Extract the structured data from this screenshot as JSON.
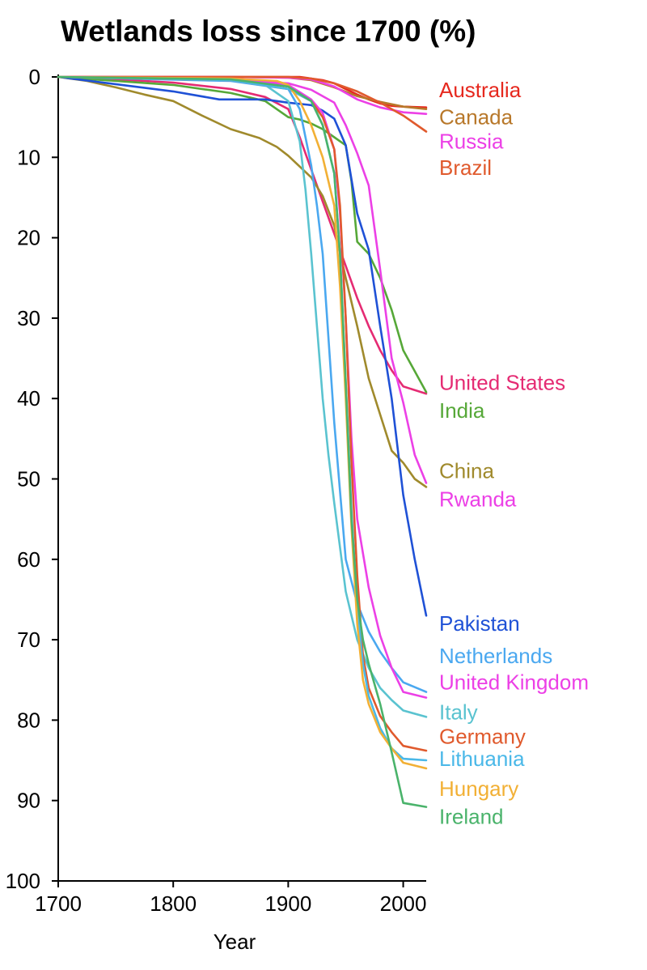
{
  "chart_data": {
    "type": "line",
    "title": "Wetlands loss since 1700 (%)",
    "xlabel": "Year",
    "ylabel": "",
    "xlim": [
      1700,
      2020
    ],
    "ylim": [
      0,
      100
    ],
    "y_inverted": true,
    "xticks": [
      1700,
      1800,
      1900,
      2000
    ],
    "yticks": [
      0,
      10,
      20,
      30,
      40,
      50,
      60,
      70,
      80,
      90,
      100
    ],
    "grid": false,
    "series": [
      {
        "name": "Australia",
        "color": "#e6281e",
        "label_value": 1.6,
        "x": [
          1700,
          1900,
          1910,
          1920,
          1930,
          1940,
          1950,
          1960,
          1970,
          1980,
          1990,
          2000,
          2020
        ],
        "y": [
          0,
          0,
          0,
          0.2,
          0.4,
          0.8,
          1.5,
          2.2,
          2.8,
          3.3,
          3.6,
          3.7,
          3.8
        ]
      },
      {
        "name": "Canada",
        "color": "#b8782a",
        "label_value": 5,
        "x": [
          1700,
          1850,
          1900,
          1920,
          1940,
          1960,
          1980,
          2000,
          2020
        ],
        "y": [
          0,
          0,
          0.1,
          0.4,
          1.3,
          2.4,
          3.1,
          3.7,
          4.0
        ]
      },
      {
        "name": "Russia",
        "color": "#ec40e6",
        "label_value": 8,
        "x": [
          1700,
          1850,
          1900,
          1920,
          1940,
          1960,
          1980,
          2000,
          2020
        ],
        "y": [
          0,
          0,
          0.1,
          0.3,
          1.2,
          2.8,
          3.8,
          4.4,
          4.6
        ]
      },
      {
        "name": "Brazil",
        "color": "#e05a2d",
        "label_value": 11.3,
        "x": [
          1700,
          1900,
          1920,
          1940,
          1960,
          1980,
          2000,
          2020
        ],
        "y": [
          0,
          0,
          0.2,
          0.8,
          1.8,
          3.2,
          4.8,
          6.8
        ]
      },
      {
        "name": "United States",
        "color": "#e52b73",
        "label_value": 38,
        "x": [
          1700,
          1750,
          1800,
          1850,
          1880,
          1900,
          1910,
          1920,
          1930,
          1940,
          1950,
          1960,
          1970,
          1980,
          1990,
          2000,
          2020
        ],
        "y": [
          0,
          0.3,
          0.7,
          1.5,
          2.5,
          4,
          7.5,
          11.5,
          15.5,
          19.5,
          23.5,
          27.5,
          31,
          34,
          36.5,
          38.5,
          39.4
        ]
      },
      {
        "name": "India",
        "color": "#56a838",
        "label_value": 41.5,
        "x": [
          1700,
          1750,
          1800,
          1850,
          1880,
          1900,
          1910,
          1920,
          1930,
          1940,
          1950,
          1955,
          1960,
          1970,
          1980,
          1990,
          2000,
          2020
        ],
        "y": [
          0,
          0.5,
          1,
          2,
          3,
          5,
          5.3,
          5.8,
          6.5,
          7.5,
          8.5,
          13,
          20.5,
          22,
          25,
          29,
          34,
          39.2
        ]
      },
      {
        "name": "China",
        "color": "#a08a2c",
        "label_value": 49,
        "x": [
          1700,
          1725,
          1750,
          1775,
          1800,
          1825,
          1850,
          1875,
          1890,
          1900,
          1920,
          1930,
          1940,
          1950,
          1960,
          1970,
          1980,
          1990,
          2000,
          2010,
          2020
        ],
        "y": [
          0,
          0.5,
          1.3,
          2.2,
          3,
          4.8,
          6.5,
          7.6,
          8.7,
          9.8,
          12.5,
          14.8,
          18.5,
          25,
          31,
          37.5,
          42,
          46.5,
          48,
          50,
          51
        ]
      },
      {
        "name": "Rwanda",
        "color": "#ec40e6",
        "label_value": 52.5,
        "x": [
          1700,
          1800,
          1850,
          1900,
          1920,
          1940,
          1950,
          1960,
          1970,
          1980,
          1990,
          2000,
          2010,
          2020
        ],
        "y": [
          0,
          0.2,
          0.4,
          0.8,
          1.6,
          3.2,
          6,
          9.5,
          13.5,
          24,
          35,
          40.5,
          47,
          50.5
        ]
      },
      {
        "name": "Pakistan",
        "color": "#1f51d6",
        "label_value": 68,
        "x": [
          1700,
          1800,
          1840,
          1880,
          1900,
          1920,
          1930,
          1940,
          1950,
          1960,
          1970,
          1980,
          1990,
          2000,
          2010,
          2020
        ],
        "y": [
          0,
          1.8,
          2.8,
          2.8,
          3.2,
          3.5,
          4.2,
          5.2,
          8.5,
          17,
          21.5,
          31,
          40,
          52,
          60,
          67
        ]
      },
      {
        "name": "Netherlands",
        "color": "#4aa8f0",
        "label_value": 72,
        "x": [
          1700,
          1850,
          1900,
          1910,
          1920,
          1925,
          1930,
          1940,
          1950,
          1960,
          1970,
          1980,
          1990,
          2000,
          2020
        ],
        "y": [
          0,
          0.5,
          1.5,
          4,
          11,
          16,
          22,
          43,
          60,
          65.5,
          69,
          71.5,
          73.5,
          75.3,
          76.5
        ]
      },
      {
        "name": "United Kingdom",
        "color": "#ec40e6",
        "label_value": 75.3,
        "x": [
          1700,
          1850,
          1900,
          1920,
          1930,
          1940,
          1945,
          1950,
          1955,
          1960,
          1970,
          1980,
          1990,
          2000,
          2020
        ],
        "y": [
          0,
          0.3,
          1,
          2.8,
          4.5,
          9,
          17,
          30,
          45,
          55,
          63.5,
          69.5,
          73.5,
          76.5,
          77.2
        ]
      },
      {
        "name": "Italy",
        "color": "#5ac3d0",
        "label_value": 79,
        "x": [
          1700,
          1850,
          1880,
          1900,
          1910,
          1915,
          1920,
          1925,
          1930,
          1935,
          1940,
          1950,
          1960,
          1970,
          1980,
          1990,
          2000,
          2020
        ],
        "y": [
          0,
          0.4,
          1,
          3,
          8,
          14,
          22,
          31,
          40,
          47,
          53,
          64,
          70,
          73.5,
          76,
          77.5,
          78.8,
          79.6
        ]
      },
      {
        "name": "Germany",
        "color": "#e05a2d",
        "label_value": 82,
        "x": [
          1700,
          1850,
          1900,
          1920,
          1930,
          1940,
          1945,
          1950,
          1955,
          1960,
          1965,
          1970,
          1980,
          1990,
          2000,
          2020
        ],
        "y": [
          0,
          0.4,
          1.5,
          3,
          5,
          9,
          16,
          30,
          48,
          62,
          72,
          76,
          79.5,
          81.5,
          83.2,
          83.8
        ]
      },
      {
        "name": "Lithuania",
        "color": "#4ab8e8",
        "label_value": 84.8,
        "x": [
          1700,
          1850,
          1900,
          1920,
          1930,
          1940,
          1945,
          1950,
          1955,
          1960,
          1965,
          1970,
          1980,
          1990,
          2000,
          2020
        ],
        "y": [
          0,
          0.4,
          1.5,
          3,
          6,
          12,
          22,
          38,
          54,
          66,
          73,
          77,
          81,
          83.5,
          84.8,
          85
        ]
      },
      {
        "name": "Hungary",
        "color": "#f2b035",
        "label_value": 88.5,
        "x": [
          1700,
          1850,
          1890,
          1900,
          1910,
          1920,
          1930,
          1940,
          1945,
          1950,
          1955,
          1960,
          1965,
          1970,
          1980,
          1990,
          2000,
          2020
        ],
        "y": [
          0,
          0.2,
          0.5,
          1,
          3,
          6,
          10,
          16,
          26,
          40,
          56,
          68,
          75,
          78,
          81.5,
          83.5,
          85.3,
          86
        ]
      },
      {
        "name": "Ireland",
        "color": "#4ab36b",
        "label_value": 92,
        "x": [
          1700,
          1850,
          1900,
          1920,
          1930,
          1940,
          1945,
          1950,
          1955,
          1960,
          1965,
          1970,
          1980,
          1990,
          2000,
          2020
        ],
        "y": [
          0,
          0.3,
          1.2,
          3,
          6,
          12,
          22,
          38,
          55,
          65,
          70,
          73,
          78,
          84,
          90.3,
          90.8
        ]
      }
    ]
  }
}
